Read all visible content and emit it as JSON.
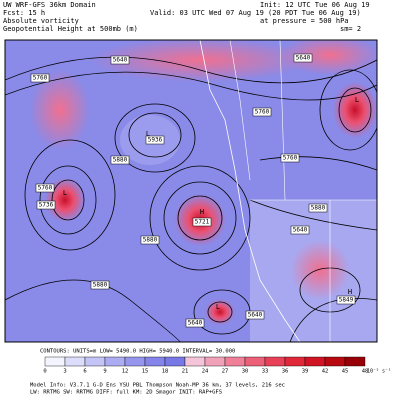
{
  "header": {
    "left": [
      "UW WRF-GFS 36km Domain",
      "Fcst:   15 h",
      "Absolute vorticity",
      "Geopotential Height at 500mb (m)"
    ],
    "right": [
      "Init: 12 UTC Tue 06 Aug 19",
      "Valid: 03 UTC Wed 07 Aug 19 (20 PDT Tue 06 Aug 19)",
      "at pressure =  500 hPa",
      "sm= 2"
    ]
  },
  "map": {
    "contour_labels": [
      "5760",
      "5640",
      "5760",
      "5640",
      "5936",
      "5880",
      "5760",
      "5736",
      "5721",
      "5880",
      "5760",
      "5880",
      "5640",
      "5640",
      "5849",
      "5880",
      "5640"
    ],
    "extrema": [
      "L",
      "H",
      "L",
      "L",
      "L",
      "H"
    ]
  },
  "contours_line": "CONTOURS:  UNITS=m   LOW=  5490.0      HIGH=  5940.0      INTERVAL=   30.000",
  "colorbar": {
    "ticks": [
      0,
      3,
      6,
      9,
      12,
      15,
      18,
      21,
      24,
      27,
      30,
      33,
      36,
      39,
      42,
      45,
      48
    ],
    "colors": [
      "#f4f4ff",
      "#dcdcfb",
      "#c4c4f6",
      "#acacf2",
      "#9696ee",
      "#8484ea",
      "#7878e6",
      "#f4c4d8",
      "#f2a2b8",
      "#f08098",
      "#ec6078",
      "#e84058",
      "#e02838",
      "#d01424",
      "#b80810",
      "#980008"
    ],
    "unit": "10⁻⁵ s⁻¹"
  },
  "footer": [
    "Model Info: V3.7.1   G-D Ens YSU PBL   Thompson   Noah-MP   36 km,  37 levels,  216 sec",
    "LW: RRTMG  SW: RRTMG   DIFF: full   KM: 2D Smagor  INIT: RAP+GFS"
  ]
}
